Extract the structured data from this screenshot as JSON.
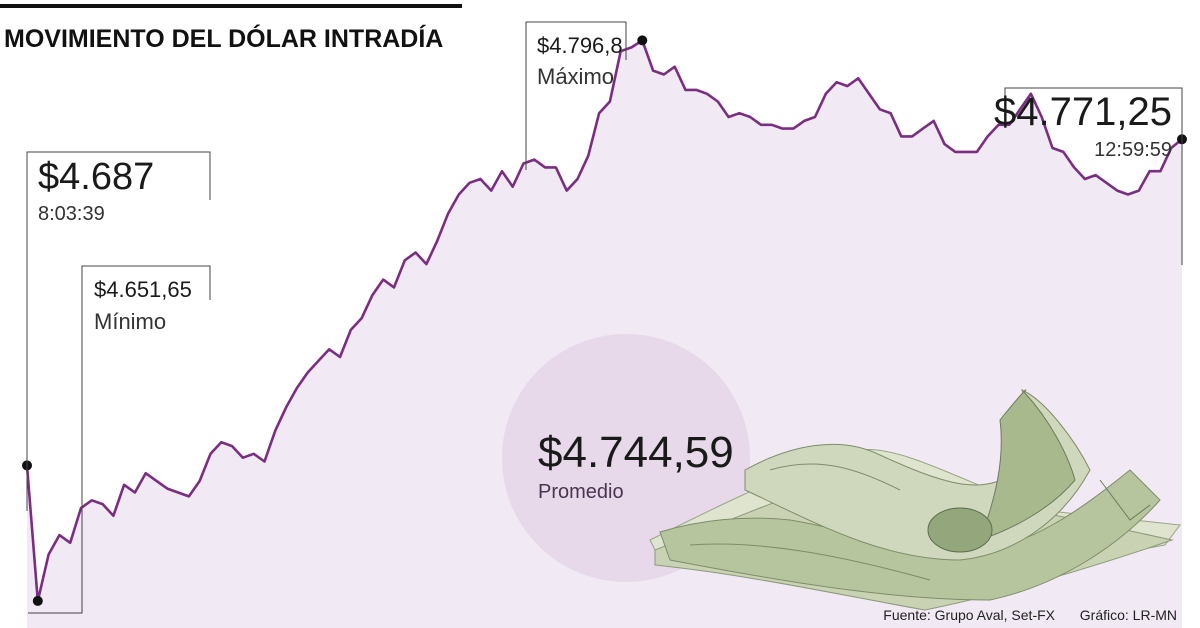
{
  "chart_data": {
    "type": "line",
    "title": "MOVIMIENTO DEL DÓLAR INTRADÍA",
    "xlabel": "",
    "ylabel": "",
    "ylim": [
      4645,
      4800
    ],
    "series_color": "#7b2d82",
    "area_color": "#f1e9f4",
    "series": [
      {
        "name": "",
        "values": [
          4687,
          4652,
          4664,
          4669,
          4667,
          4676,
          4678,
          4677,
          4674,
          4682,
          4680,
          4685,
          4683,
          4681,
          4680,
          4679,
          4683,
          4690,
          4693,
          4692,
          4689,
          4690,
          4688,
          4696,
          4702,
          4707,
          4711,
          4714,
          4717,
          4715,
          4722,
          4725,
          4731,
          4735,
          4733,
          4740,
          4742,
          4739,
          4745,
          4752,
          4757,
          4760,
          4761,
          4758,
          4763,
          4759,
          4765,
          4766,
          4764,
          4764,
          4758,
          4761,
          4767,
          4778,
          4781,
          4794,
          4795,
          4796.8,
          4789,
          4788,
          4790,
          4784,
          4784,
          4783,
          4781,
          4777,
          4778,
          4777,
          4775,
          4775,
          4774,
          4774,
          4776,
          4777,
          4783,
          4786,
          4785,
          4787,
          4783,
          4779,
          4778,
          4772,
          4772,
          4774,
          4776,
          4770,
          4768,
          4768,
          4768,
          4772,
          4775,
          4775,
          4779,
          4783,
          4777,
          4769,
          4768,
          4764,
          4761,
          4762,
          4760,
          4758,
          4757,
          4758,
          4763,
          4763,
          4769,
          4771.25
        ]
      }
    ],
    "annotations": {
      "open": {
        "value": "$4.687",
        "time": "8:03:39"
      },
      "min": {
        "value": "$4.651,65",
        "label": "Mínimo"
      },
      "max": {
        "value": "$4.796,8",
        "label": "Máximo"
      },
      "close": {
        "value": "$4.771,25",
        "time": "12:59:59"
      },
      "avg": {
        "value": "$4.744,59",
        "label": "Promedio"
      }
    },
    "source": "Fuente: Grupo Aval, Set-FX",
    "credit": "Gráfico: LR-MN"
  },
  "colors": {
    "avg_circle": "#e7d9ea",
    "text": "#1a1a1a",
    "money_green": "#aebf98"
  },
  "image": {
    "name": "dollar-bills-photo"
  }
}
